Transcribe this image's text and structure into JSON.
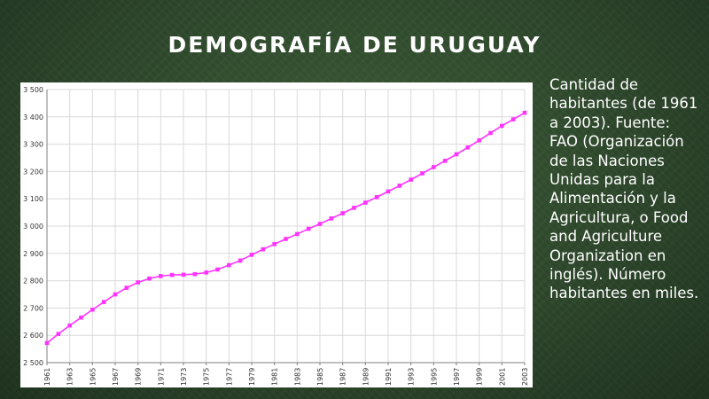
{
  "slide": {
    "title": "DEMOGRAFÍA DE URUGUAY",
    "description": "Cantidad de habitantes (de 1961 a 2003). Fuente: FAO (Organización de las Naciones Unidas para la Alimentación y la Agricultura, o Food and Agriculture Organization en inglés). Número habitantes en miles."
  },
  "colors": {
    "line": "#ff33ff",
    "grid": "#d9d9d9",
    "axis": "#7f7f7f"
  },
  "chart_data": {
    "type": "line",
    "title": "",
    "xlabel": "",
    "ylabel": "",
    "grid": true,
    "ylim": [
      2500,
      3500
    ],
    "xlim": [
      1961,
      2003
    ],
    "yticks": [
      2500,
      2600,
      2700,
      2800,
      2900,
      3000,
      3100,
      3200,
      3300,
      3400,
      3500
    ],
    "ytick_labels": [
      "2 500",
      "2 600",
      "2 700",
      "2 800",
      "2 900",
      "3 000",
      "3 100",
      "3 200",
      "3 300",
      "3 400",
      "3 500"
    ],
    "xticks": [
      1961,
      1963,
      1965,
      1967,
      1969,
      1971,
      1973,
      1975,
      1977,
      1979,
      1981,
      1983,
      1985,
      1987,
      1989,
      1991,
      1993,
      1995,
      1997,
      1999,
      2001,
      2003
    ],
    "xtick_labels": [
      "1961",
      "1963",
      "1965",
      "1967",
      "1969",
      "1971",
      "1973",
      "1975",
      "1977",
      "1979",
      "1981",
      "1983",
      "1985",
      "1987",
      "1989",
      "1991",
      "1993",
      "1995",
      "1997",
      "1999",
      "2001",
      "2003"
    ],
    "series": [
      {
        "x": [
          1961,
          1962,
          1963,
          1964,
          1965,
          1966,
          1967,
          1968,
          1969,
          1970,
          1971,
          1972,
          1973,
          1974,
          1975,
          1976,
          1977,
          1978,
          1979,
          1980,
          1981,
          1982,
          1983,
          1984,
          1985,
          1986,
          1987,
          1988,
          1989,
          1990,
          1991,
          1992,
          1993,
          1994,
          1995,
          1996,
          1997,
          1998,
          1999,
          2000,
          2001,
          2002,
          2003
        ],
        "y": [
          2572,
          2605,
          2636,
          2665,
          2694,
          2722,
          2750,
          2774,
          2794,
          2808,
          2817,
          2821,
          2822,
          2824,
          2830,
          2841,
          2857,
          2874,
          2895,
          2915,
          2934,
          2953,
          2971,
          2990,
          3008,
          3028,
          3047,
          3067,
          3086,
          3106,
          3127,
          3148,
          3170,
          3193,
          3216,
          3239,
          3263,
          3288,
          3314,
          3341,
          3367,
          3391,
          3415
        ]
      }
    ]
  }
}
